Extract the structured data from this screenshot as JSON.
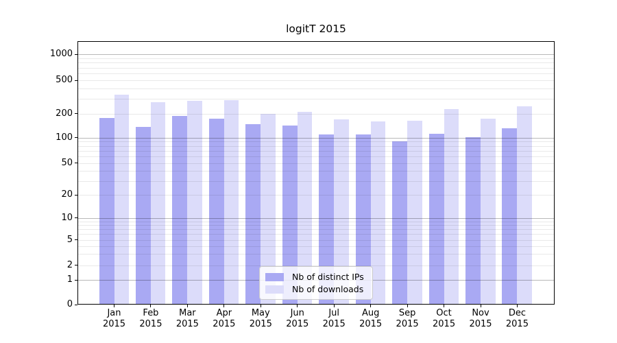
{
  "chart_data": {
    "type": "bar",
    "title": "logitT 2015",
    "year": "2015",
    "months": [
      "Jan",
      "Feb",
      "Mar",
      "Apr",
      "May",
      "Jun",
      "Jul",
      "Aug",
      "Sep",
      "Oct",
      "Nov",
      "Dec"
    ],
    "categories": [
      "Jan 2015",
      "Feb 2015",
      "Mar 2015",
      "Apr 2015",
      "May 2015",
      "Jun 2015",
      "Jul 2015",
      "Aug 2015",
      "Sep 2015",
      "Oct 2015",
      "Nov 2015",
      "Dec 2015"
    ],
    "series": [
      {
        "name": "Nb of distinct IPs",
        "color": "#a9a9f3",
        "values": [
          175,
          136,
          188,
          174,
          147,
          141,
          110,
          110,
          90,
          112,
          101,
          130
        ]
      },
      {
        "name": "Nb of downloads",
        "color": "#dcdcfa",
        "values": [
          335,
          272,
          284,
          289,
          200,
          210,
          170,
          158,
          163,
          225,
          171,
          242
        ]
      }
    ],
    "yticks": [
      0,
      1,
      2,
      5,
      10,
      20,
      50,
      100,
      200,
      500,
      1000
    ],
    "y_scale": "log-like with 0 baseline",
    "grid": "minor light gray lines per log subdivision, major gray lines at 1/10/100/1000",
    "legend_position": "lower center",
    "colors": {
      "major_grid": "#b8b8b8",
      "minor_grid": "#e9e9e9",
      "axis": "#000000",
      "background": "#ffffff"
    }
  }
}
